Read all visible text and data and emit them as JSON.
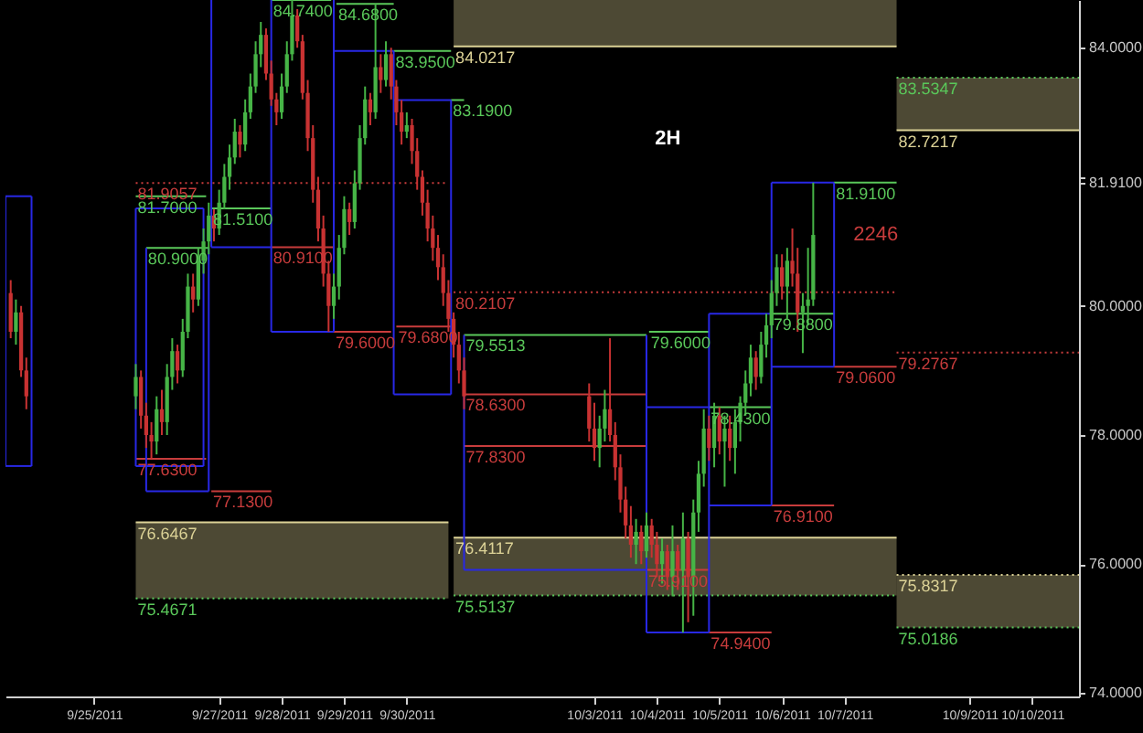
{
  "chart_data": {
    "type": "candlestick",
    "annotations": [
      "2H",
      {
        "text": "2246",
        "x": "2011-10-06T12:00",
        "y": 81.1
      }
    ],
    "xlim": [
      "2011-09-23T14:00",
      "2011-10-10T18:00"
    ],
    "xticks": [
      {
        "value": "2011-09-25",
        "label": "9/25/2011"
      },
      {
        "value": "2011-09-27",
        "label": "9/27/2011"
      },
      {
        "value": "2011-09-28",
        "label": "9/28/2011"
      },
      {
        "value": "2011-09-29",
        "label": "9/29/2011"
      },
      {
        "value": "2011-09-30",
        "label": "9/30/2011"
      },
      {
        "value": "2011-10-03",
        "label": "10/3/2011"
      },
      {
        "value": "2011-10-04",
        "label": "10/4/2011"
      },
      {
        "value": "2011-10-05",
        "label": "10/5/2011"
      },
      {
        "value": "2011-10-06",
        "label": "10/6/2011"
      },
      {
        "value": "2011-10-07",
        "label": "10/7/2011"
      },
      {
        "value": "2011-10-09",
        "label": "10/9/2011"
      },
      {
        "value": "2011-10-10",
        "label": "10/10/2011"
      }
    ],
    "ylim": [
      73.95,
      84.74
    ],
    "yticks": [
      {
        "value": 74,
        "label": "74.0000"
      },
      {
        "value": 76,
        "label": "76.0000"
      },
      {
        "value": 78,
        "label": "78.0000"
      },
      {
        "value": 80,
        "label": "80.0000"
      },
      {
        "value": 81.91,
        "label": "81.9100"
      },
      {
        "value": 82,
        "label": null
      },
      {
        "value": 84,
        "label": "84.0000"
      }
    ],
    "series": [
      {
        "type": "line",
        "color": "#dcd296",
        "x": [
          "2011-09-25T16:00",
          "2011-09-30T16:00"
        ],
        "values": [
          76.6467,
          76.6467
        ],
        "lower": [
          75.4671,
          75.4671
        ],
        "upper": [
          76.6467,
          76.6467
        ],
        "value_labels": [
          "76.6467",
          null
        ]
      },
      {
        "type": "line",
        "color": "#dcd296",
        "x": [
          "2011-09-30T18:00",
          "2011-10-07T20:00"
        ],
        "values": [
          76.4117,
          76.4117
        ],
        "lower": [
          75.5137,
          75.5137
        ],
        "upper": [
          76.4117,
          76.4117
        ],
        "value_labels": [
          "76.4117",
          null
        ]
      },
      {
        "type": "line",
        "color": "#dcd296",
        "line_style": "dotted",
        "x": [
          "2011-10-07T20:00",
          "2011-10-10T18:00"
        ],
        "values": [
          75.8317,
          75.8317
        ],
        "lower": [
          75.0186,
          75.0186
        ],
        "upper": [
          75.8317,
          75.8317
        ],
        "value_labels": [
          "75.8317",
          null
        ]
      },
      {
        "type": "line",
        "color": "#dcd296",
        "x": [
          "2011-09-30T18:00",
          "2011-10-07T20:00"
        ],
        "values": [
          84.0217,
          84.0217
        ],
        "lower": [
          84.0217,
          84.0217
        ],
        "upper": [
          84.74,
          84.74
        ],
        "value_labels": [
          "84.0217",
          null
        ]
      },
      {
        "type": "line",
        "color": "#dcd296",
        "x": [
          "2011-10-07T20:00",
          "2011-10-10T18:00"
        ],
        "values": [
          82.7217,
          82.7217
        ],
        "lower": [
          82.7217,
          82.7217
        ],
        "upper": [
          83.5347,
          83.5347
        ],
        "value_labels": [
          "82.7217",
          null
        ]
      },
      {
        "type": "line",
        "color": "#5ac85a",
        "line_style": "dotted",
        "x": [
          "2011-09-25T16:00",
          "2011-09-30T16:00"
        ],
        "values": [
          75.4671,
          75.4671
        ],
        "value_labels": [
          "75.4671",
          null
        ]
      },
      {
        "type": "line",
        "color": "#5ac85a",
        "line_style": "dotted",
        "x": [
          "2011-09-30T18:00",
          "2011-10-07T20:00"
        ],
        "values": [
          75.5137,
          75.5137
        ],
        "value_labels": [
          "75.5137",
          null
        ]
      },
      {
        "type": "line",
        "color": "#5ac85a",
        "line_style": "dotted",
        "x": [
          "2011-10-07T20:00",
          "2011-10-10T18:00"
        ],
        "values": [
          75.0186,
          75.0186
        ],
        "value_labels": [
          "75.0186",
          null
        ]
      },
      {
        "type": "line",
        "color": "#5ac85a",
        "line_style": "dotted",
        "x": [
          "2011-10-07T20:00",
          "2011-10-10T18:00"
        ],
        "values": [
          83.5347,
          83.5347
        ],
        "value_labels": [
          "83.5347",
          null
        ]
      },
      {
        "type": "line",
        "color": "#c83c3c",
        "line_style": "dotted",
        "x": [
          "2011-09-25T16:00",
          "2011-09-30T16:00"
        ],
        "values": [
          81.9057,
          81.9057
        ],
        "value_labels": [
          "81.9057",
          null
        ]
      },
      {
        "type": "line",
        "color": "#c83c3c",
        "line_style": "dotted",
        "x": [
          "2011-09-30T18:00",
          "2011-10-07T20:00"
        ],
        "values": [
          80.2107,
          80.2107
        ],
        "value_labels": [
          "80.2107",
          null
        ]
      },
      {
        "type": "line",
        "color": "#c83c3c",
        "line_style": "dotted",
        "x": [
          "2011-10-07T20:00",
          "2011-10-10T18:00"
        ],
        "values": [
          79.2767,
          79.2767
        ],
        "value_labels": [
          "79.2767",
          null
        ]
      },
      {
        "type": "line",
        "color": "#2828e6",
        "x": [
          "2011-09-23T14:00",
          "2011-09-24T00:00"
        ],
        "values": [
          81.7,
          81.7
        ],
        "errors": [
          [
            77.52,
            81.7
          ],
          [
            77.52,
            81.7
          ]
        ]
      },
      {
        "type": "line",
        "color": "#2828e6",
        "x": [
          "2011-09-23T14:00",
          "2011-09-24T00:00"
        ],
        "values": [
          77.52,
          77.52
        ]
      },
      {
        "type": "line",
        "color": "#2828e6",
        "x": [
          "2011-09-25T16:00",
          "2011-09-26T18:00"
        ],
        "values": [
          81.51,
          81.51
        ],
        "errors": [
          [
            77.52,
            81.51
          ],
          [
            77.52,
            81.51
          ]
        ]
      },
      {
        "type": "line",
        "color": "#2828e6",
        "x": [
          "2011-09-25T16:00",
          "2011-09-26T18:00"
        ],
        "values": [
          77.52,
          77.52
        ]
      },
      {
        "type": "line",
        "color": "#2828e6",
        "x": [
          "2011-09-25T20:00",
          "2011-09-26T20:00"
        ],
        "values": [
          77.13,
          77.13
        ],
        "errors": [
          [
            77.13,
            80.9
          ],
          [
            77.13,
            80.9
          ]
        ]
      },
      {
        "type": "line",
        "color": "#2828e6",
        "x": [
          "2011-09-26T21:00",
          "2011-09-27T20:00"
        ],
        "values": [
          80.91,
          80.91
        ],
        "errors": [
          [
            80.91,
            84.74
          ],
          null
        ]
      },
      {
        "type": "line",
        "color": "#2828e6",
        "x": [
          "2011-09-27T20:00",
          "2011-09-28T20:00"
        ],
        "values": [
          79.6,
          79.6
        ],
        "errors": [
          [
            79.6,
            84.74
          ],
          [
            79.6,
            84.74
          ]
        ]
      },
      {
        "type": "line",
        "color": "#2828e6",
        "x": [
          "2011-09-28T20:00",
          "2011-09-29T19:00"
        ],
        "values": [
          83.95,
          83.95
        ],
        "errors": [
          null,
          [
            78.63,
            83.95
          ]
        ]
      },
      {
        "type": "line",
        "color": "#2828e6",
        "x": [
          "2011-09-29T19:00",
          "2011-09-30T17:00"
        ],
        "values": [
          83.19,
          83.19
        ],
        "errors": [
          null,
          [
            78.63,
            83.19
          ]
        ]
      },
      {
        "type": "line",
        "color": "#2828e6",
        "x": [
          "2011-09-29T19:00",
          "2011-09-30T17:00"
        ],
        "values": [
          78.63,
          78.63
        ]
      },
      {
        "type": "line",
        "color": "#2828e6",
        "x": [
          "2011-09-30T22:00",
          "2011-10-03T20:00"
        ],
        "values": [
          75.91,
          75.91
        ],
        "errors": [
          [
            75.91,
            79.5513
          ],
          [
            74.94,
            79.5513
          ]
        ]
      },
      {
        "type": "line",
        "color": "#2828e6",
        "x": [
          "2011-10-03T20:00",
          "2011-10-04T20:00"
        ],
        "values": [
          78.43,
          78.43
        ],
        "errors": [
          null,
          [
            74.94,
            79.88
          ]
        ]
      },
      {
        "type": "line",
        "color": "#2828e6",
        "x": [
          "2011-10-03T20:00",
          "2011-10-04T20:00"
        ],
        "values": [
          74.94,
          74.94
        ]
      },
      {
        "type": "line",
        "color": "#2828e6",
        "x": [
          "2011-10-04T20:00",
          "2011-10-05T20:00"
        ],
        "values": [
          79.88,
          79.88
        ],
        "errors": [
          null,
          [
            76.91,
            81.91
          ]
        ]
      },
      {
        "type": "line",
        "color": "#2828e6",
        "x": [
          "2011-10-04T20:00",
          "2011-10-05T20:00"
        ],
        "values": [
          76.91,
          76.91
        ]
      },
      {
        "type": "line",
        "color": "#2828e6",
        "x": [
          "2011-10-05T20:00",
          "2011-10-06T20:00"
        ],
        "values": [
          81.91,
          81.91
        ],
        "errors": [
          null,
          [
            79.06,
            81.91
          ]
        ]
      },
      {
        "type": "line",
        "color": "#2828e6",
        "x": [
          "2011-10-05T20:00",
          "2011-10-06T20:00"
        ],
        "values": [
          79.06,
          79.06
        ]
      },
      {
        "type": "line",
        "color": "#5ac85a",
        "x": [
          "2011-09-27T20:00",
          "2011-09-28T19:00"
        ],
        "values": [
          84.74,
          84.74
        ],
        "value_labels": [
          "84.7400",
          null
        ]
      },
      {
        "type": "line",
        "color": "#5ac85a",
        "x": [
          "2011-09-28T21:00",
          "2011-09-29T19:00"
        ],
        "values": [
          84.68,
          84.68
        ],
        "value_labels": [
          "84.6800",
          null
        ]
      },
      {
        "type": "line",
        "color": "#5ac85a",
        "x": [
          "2011-09-29T19:00",
          "2011-09-30T17:00"
        ],
        "values": [
          83.95,
          83.95
        ],
        "value_labels": [
          "83.9500",
          null
        ]
      },
      {
        "type": "line",
        "color": "#5ac85a",
        "x": [
          "2011-09-30T17:00",
          "2011-09-30T22:00"
        ],
        "values": [
          83.19,
          83.19
        ],
        "value_labels": [
          "83.1900",
          null
        ]
      },
      {
        "type": "line",
        "color": "#5ac85a",
        "x": [
          "2011-09-25T16:00",
          "2011-09-26T19:00"
        ],
        "values": [
          81.7,
          81.7
        ],
        "value_labels": [
          "81.7000",
          null
        ]
      },
      {
        "type": "line",
        "color": "#5ac85a",
        "x": [
          "2011-09-26T21:00",
          "2011-09-27T20:00"
        ],
        "values": [
          81.51,
          81.51
        ],
        "value_labels": [
          "81.5100",
          null
        ]
      },
      {
        "type": "line",
        "color": "#5ac85a",
        "x": [
          "2011-09-25T20:00",
          "2011-09-26T20:00"
        ],
        "values": [
          80.9,
          80.9
        ],
        "value_labels": [
          "80.9000",
          null
        ]
      },
      {
        "type": "line",
        "color": "#c83c3c",
        "x": [
          "2011-09-27T20:00",
          "2011-09-28T20:00"
        ],
        "values": [
          80.91,
          80.91
        ],
        "value_labels": [
          "80.9100",
          null
        ]
      },
      {
        "type": "line",
        "color": "#c83c3c",
        "x": [
          "2011-09-28T20:00",
          "2011-09-29T18:00"
        ],
        "values": [
          79.6,
          79.6
        ],
        "value_labels": [
          "79.6000",
          null
        ]
      },
      {
        "type": "line",
        "color": "#c83c3c",
        "x": [
          "2011-09-29T20:00",
          "2011-09-30T17:00"
        ],
        "values": [
          79.68,
          79.68
        ],
        "value_labels": [
          "79.6800",
          null
        ]
      },
      {
        "type": "line",
        "color": "#5ac85a",
        "x": [
          "2011-09-30T22:00",
          "2011-10-03T20:00"
        ],
        "values": [
          79.5513,
          79.5513
        ],
        "value_labels": [
          "79.5513",
          null
        ]
      },
      {
        "type": "line",
        "color": "#5ac85a",
        "x": [
          "2011-10-03T21:00",
          "2011-10-04T20:00"
        ],
        "values": [
          79.6,
          79.6
        ],
        "value_labels": [
          "79.6000",
          null
        ]
      },
      {
        "type": "line",
        "color": "#c83c3c",
        "x": [
          "2011-09-25T16:00",
          "2011-09-26T19:00"
        ],
        "values": [
          77.63,
          77.63
        ],
        "value_labels": [
          "77.6300",
          null
        ]
      },
      {
        "type": "line",
        "color": "#c83c3c",
        "x": [
          "2011-09-26T21:00",
          "2011-09-27T20:00"
        ],
        "values": [
          77.13,
          77.13
        ],
        "value_labels": [
          "77.1300",
          null
        ]
      },
      {
        "type": "line",
        "color": "#c83c3c",
        "x": [
          "2011-09-30T22:00",
          "2011-10-03T20:00"
        ],
        "values": [
          78.63,
          78.63
        ],
        "value_labels": [
          "78.6300",
          null
        ]
      },
      {
        "type": "line",
        "color": "#c83c3c",
        "x": [
          "2011-09-30T22:00",
          "2011-10-03T20:00"
        ],
        "values": [
          77.83,
          77.83
        ],
        "value_labels": [
          "77.8300",
          null
        ]
      },
      {
        "type": "line",
        "color": "#c83c3c",
        "x": [
          "2011-10-03T20:00",
          "2011-10-04T20:00"
        ],
        "values": [
          75.91,
          75.91
        ],
        "value_labels": [
          "75.9100",
          null
        ]
      },
      {
        "type": "line",
        "color": "#c83c3c",
        "x": [
          "2011-10-04T20:00",
          "2011-10-05T20:00"
        ],
        "values": [
          74.94,
          74.94
        ],
        "value_labels": [
          "74.9400",
          null
        ]
      },
      {
        "type": "line",
        "color": "#5ac85a",
        "x": [
          "2011-10-04T20:00",
          "2011-10-05T20:00"
        ],
        "values": [
          78.43,
          78.43
        ],
        "value_labels": [
          "78.4300",
          null
        ]
      },
      {
        "type": "line",
        "color": "#5ac85a",
        "x": [
          "2011-10-05T20:00",
          "2011-10-06T20:00"
        ],
        "values": [
          79.88,
          79.88
        ],
        "value_labels": [
          "79.8800",
          null
        ]
      },
      {
        "type": "line",
        "color": "#c83c3c",
        "x": [
          "2011-10-05T20:00",
          "2011-10-06T20:00"
        ],
        "values": [
          76.91,
          76.91
        ],
        "value_labels": [
          "76.9100",
          null
        ]
      },
      {
        "type": "line",
        "color": "#5ac85a",
        "x": [
          "2011-10-06T20:00",
          "2011-10-07T20:00"
        ],
        "values": [
          81.91,
          81.91
        ],
        "value_labels": [
          "81.9100",
          null
        ]
      },
      {
        "type": "line",
        "color": "#c83c3c",
        "x": [
          "2011-10-06T20:00",
          "2011-10-07T20:00"
        ],
        "values": [
          79.06,
          79.06
        ],
        "value_labels": [
          "79.0600",
          null
        ]
      },
      {
        "color": "#46b446",
        "x": [
          "2011-09-23T18:00",
          "2011-09-25T16:00",
          "2011-09-26T00:00",
          "2011-09-26T04:00",
          "2011-09-26T06:00",
          "2011-09-26T10:00",
          "2011-09-26T12:00",
          "2011-09-26T16:00",
          "2011-09-26T18:00",
          "2011-09-26T20:00",
          "2011-09-27T00:00",
          "2011-09-27T02:00",
          "2011-09-27T04:00",
          "2011-09-27T06:00",
          "2011-09-27T10:00",
          "2011-09-27T12:00",
          "2011-09-27T14:00",
          "2011-09-27T16:00",
          "2011-09-28T00:00",
          "2011-09-28T02:00",
          "2011-09-28T04:00",
          "2011-09-28T20:00",
          "2011-09-28T22:00",
          "2011-09-29T00:00",
          "2011-09-29T04:00",
          "2011-09-29T06:00",
          "2011-09-29T08:00",
          "2011-09-29T12:00",
          "2011-09-29T16:00",
          "2011-09-30T00:00",
          "2011-10-03T02:00",
          "2011-10-03T04:00",
          "2011-10-03T16:00",
          "2011-10-03T20:00",
          "2011-10-04T02:00",
          "2011-10-04T06:00",
          "2011-10-04T10:00",
          "2011-10-04T14:00",
          "2011-10-04T16:00",
          "2011-10-04T18:00",
          "2011-10-04T22:00",
          "2011-10-05T02:00",
          "2011-10-05T06:00",
          "2011-10-05T08:00",
          "2011-10-05T10:00",
          "2011-10-05T12:00",
          "2011-10-05T16:00",
          "2011-10-05T18:00",
          "2011-10-05T20:00",
          "2011-10-05T22:00",
          "2011-10-06T02:00",
          "2011-10-06T08:00",
          "2011-10-06T10:00",
          "2011-10-06T12:00"
        ],
        "ohlc": [
          [
            79.6,
            80.1,
            79.4,
            79.9
          ],
          [
            78.6,
            79.1,
            78.4,
            78.9
          ],
          [
            77.9,
            78.6,
            77.7,
            78.4
          ],
          [
            78.2,
            79.1,
            78.0,
            78.9
          ],
          [
            78.9,
            79.5,
            78.7,
            79.3
          ],
          [
            79.0,
            79.8,
            78.9,
            79.6
          ],
          [
            79.6,
            80.5,
            79.5,
            80.3
          ],
          [
            80.1,
            80.9,
            80.0,
            80.7
          ],
          [
            80.7,
            81.2,
            80.5,
            81.0
          ],
          [
            81.0,
            81.6,
            80.8,
            81.4
          ],
          [
            81.2,
            81.8,
            81.1,
            81.6
          ],
          [
            81.6,
            82.2,
            81.5,
            82.0
          ],
          [
            82.0,
            82.5,
            81.8,
            82.3
          ],
          [
            82.3,
            82.9,
            82.2,
            82.7
          ],
          [
            82.5,
            83.2,
            82.4,
            83.0
          ],
          [
            83.0,
            83.6,
            82.9,
            83.4
          ],
          [
            83.4,
            84.1,
            83.3,
            83.9
          ],
          [
            83.9,
            84.4,
            83.7,
            84.2
          ],
          [
            83.0,
            83.6,
            82.9,
            83.4
          ],
          [
            83.4,
            84.1,
            83.3,
            83.9
          ],
          [
            83.9,
            84.74,
            83.8,
            84.5
          ],
          [
            80.0,
            80.5,
            79.8,
            80.3
          ],
          [
            80.3,
            81.1,
            80.1,
            80.9
          ],
          [
            80.9,
            81.7,
            80.8,
            81.5
          ],
          [
            81.3,
            82.1,
            81.2,
            81.9
          ],
          [
            81.9,
            82.8,
            81.8,
            82.6
          ],
          [
            82.6,
            83.4,
            82.5,
            83.2
          ],
          [
            83.0,
            84.68,
            82.9,
            83.7
          ],
          [
            83.5,
            84.1,
            83.4,
            83.9
          ],
          [
            82.7,
            83.0,
            82.6,
            82.8
          ],
          [
            77.8,
            78.3,
            77.5,
            78.1
          ],
          [
            78.1,
            78.7,
            77.9,
            78.4
          ],
          [
            76.3,
            76.7,
            76.0,
            76.5
          ],
          [
            76.2,
            76.8,
            76.1,
            76.6
          ],
          [
            76.0,
            76.4,
            75.7,
            76.2
          ],
          [
            75.8,
            76.6,
            75.5,
            76.2
          ],
          [
            75.9,
            76.8,
            74.94,
            76.4
          ],
          [
            75.8,
            77.0,
            75.2,
            76.8
          ],
          [
            76.8,
            77.6,
            76.5,
            77.4
          ],
          [
            77.4,
            78.4,
            77.2,
            78.1
          ],
          [
            77.8,
            78.5,
            77.5,
            78.3
          ],
          [
            77.9,
            78.3,
            77.2,
            78.1
          ],
          [
            77.8,
            78.4,
            77.4,
            78.2
          ],
          [
            78.2,
            78.6,
            77.9,
            78.5
          ],
          [
            78.5,
            79.0,
            78.3,
            78.8
          ],
          [
            78.8,
            79.4,
            78.6,
            79.2
          ],
          [
            78.9,
            79.6,
            78.8,
            79.4
          ],
          [
            79.4,
            79.88,
            79.2,
            79.7
          ],
          [
            79.7,
            80.4,
            79.5,
            80.2
          ],
          [
            80.2,
            80.8,
            80.0,
            80.6
          ],
          [
            80.3,
            80.9,
            79.8,
            80.7
          ],
          [
            79.9,
            80.2,
            79.27,
            80.0
          ],
          [
            80.0,
            80.9,
            79.7,
            80.1
          ],
          [
            80.1,
            81.91,
            80.0,
            81.1
          ]
        ]
      },
      {
        "color": "#c83232",
        "x": [
          "2011-09-23T16:00",
          "2011-09-23T20:00",
          "2011-09-23T22:00",
          "2011-09-25T18:00",
          "2011-09-25T20:00",
          "2011-09-25T22:00",
          "2011-09-26T02:00",
          "2011-09-26T08:00",
          "2011-09-26T14:00",
          "2011-09-26T22:00",
          "2011-09-27T08:00",
          "2011-09-27T18:00",
          "2011-09-27T20:00",
          "2011-09-27T22:00",
          "2011-09-28T06:00",
          "2011-09-28T08:00",
          "2011-09-28T10:00",
          "2011-09-28T12:00",
          "2011-09-28T14:00",
          "2011-09-28T16:00",
          "2011-09-28T18:00",
          "2011-09-29T02:00",
          "2011-09-29T10:00",
          "2011-09-29T14:00",
          "2011-09-29T18:00",
          "2011-09-29T20:00",
          "2011-09-29T22:00",
          "2011-09-30T02:00",
          "2011-09-30T04:00",
          "2011-09-30T06:00",
          "2011-09-30T08:00",
          "2011-09-30T10:00",
          "2011-09-30T12:00",
          "2011-09-30T14:00",
          "2011-09-30T16:00",
          "2011-09-30T18:00",
          "2011-09-30T20:00",
          "2011-09-30T22:00",
          "2011-10-02T22:00",
          "2011-10-03T00:00",
          "2011-10-03T06:00",
          "2011-10-03T08:00",
          "2011-10-03T10:00",
          "2011-10-03T12:00",
          "2011-10-03T14:00",
          "2011-10-03T18:00",
          "2011-10-03T22:00",
          "2011-10-04T00:00",
          "2011-10-04T04:00",
          "2011-10-04T08:00",
          "2011-10-04T12:00",
          "2011-10-04T20:00",
          "2011-10-05T00:00",
          "2011-10-05T04:00",
          "2011-10-05T14:00",
          "2011-10-06T00:00",
          "2011-10-06T04:00",
          "2011-10-06T06:00"
        ],
        "ohlc": [
          [
            80.2,
            80.4,
            79.5,
            79.6
          ],
          [
            79.9,
            80.0,
            78.9,
            79.0
          ],
          [
            79.0,
            79.2,
            78.4,
            78.6
          ],
          [
            78.9,
            79.0,
            78.1,
            78.3
          ],
          [
            78.3,
            78.5,
            77.8,
            78.0
          ],
          [
            78.0,
            78.2,
            77.63,
            77.9
          ],
          [
            78.4,
            78.7,
            78.0,
            78.2
          ],
          [
            79.3,
            79.4,
            78.8,
            79.0
          ],
          [
            80.3,
            80.5,
            79.9,
            80.1
          ],
          [
            81.4,
            81.5,
            81.0,
            81.2
          ],
          [
            82.7,
            82.8,
            82.3,
            82.5
          ],
          [
            84.2,
            84.3,
            83.5,
            83.6
          ],
          [
            83.6,
            83.8,
            83.1,
            83.2
          ],
          [
            83.2,
            83.3,
            82.8,
            83.0
          ],
          [
            84.5,
            84.6,
            84.0,
            84.1
          ],
          [
            84.1,
            84.2,
            83.2,
            83.3
          ],
          [
            83.3,
            83.5,
            82.4,
            82.6
          ],
          [
            82.6,
            82.8,
            81.6,
            81.8
          ],
          [
            81.8,
            82.0,
            81.0,
            81.2
          ],
          [
            81.2,
            81.4,
            80.3,
            80.5
          ],
          [
            80.5,
            80.7,
            79.6,
            80.0
          ],
          [
            81.5,
            81.6,
            81.1,
            81.3
          ],
          [
            83.2,
            83.3,
            82.8,
            83.0
          ],
          [
            83.7,
            83.9,
            83.3,
            83.5
          ],
          [
            83.9,
            84.0,
            83.2,
            83.4
          ],
          [
            83.4,
            83.5,
            82.8,
            83.0
          ],
          [
            83.0,
            83.19,
            82.5,
            82.7
          ],
          [
            82.8,
            82.9,
            82.2,
            82.4
          ],
          [
            82.4,
            82.6,
            81.8,
            82.0
          ],
          [
            82.0,
            82.1,
            81.4,
            81.6
          ],
          [
            81.6,
            81.8,
            81.0,
            81.2
          ],
          [
            81.2,
            81.4,
            80.7,
            80.9
          ],
          [
            80.9,
            81.1,
            80.4,
            80.6
          ],
          [
            80.6,
            80.8,
            80.0,
            80.2
          ],
          [
            80.2,
            80.4,
            79.6,
            79.8
          ],
          [
            79.8,
            79.9,
            79.2,
            79.4
          ],
          [
            79.4,
            79.6,
            78.8,
            79.0
          ],
          [
            79.0,
            79.2,
            78.4,
            78.6
          ],
          [
            78.6,
            78.8,
            77.9,
            78.1
          ],
          [
            78.1,
            78.5,
            77.6,
            77.8
          ],
          [
            78.4,
            79.5,
            77.9,
            78.0
          ],
          [
            78.0,
            78.2,
            77.3,
            77.5
          ],
          [
            77.5,
            77.7,
            76.8,
            77.0
          ],
          [
            77.0,
            77.2,
            76.4,
            76.6
          ],
          [
            76.6,
            76.9,
            76.1,
            76.3
          ],
          [
            76.5,
            76.6,
            76.0,
            76.2
          ],
          [
            76.6,
            76.7,
            76.1,
            76.3
          ],
          [
            76.3,
            76.5,
            75.8,
            76.0
          ],
          [
            76.2,
            76.3,
            75.6,
            75.8
          ],
          [
            76.2,
            76.3,
            75.6,
            75.9
          ],
          [
            76.4,
            76.5,
            75.1,
            75.8
          ],
          [
            78.1,
            78.3,
            77.6,
            77.8
          ],
          [
            78.3,
            78.43,
            77.7,
            77.9
          ],
          [
            78.1,
            78.3,
            77.6,
            77.8
          ],
          [
            79.2,
            79.3,
            78.7,
            78.9
          ],
          [
            80.6,
            80.8,
            80.1,
            80.3
          ],
          [
            80.7,
            81.2,
            80.3,
            80.5
          ],
          [
            80.5,
            80.9,
            79.6,
            79.9
          ]
        ]
      }
    ]
  }
}
